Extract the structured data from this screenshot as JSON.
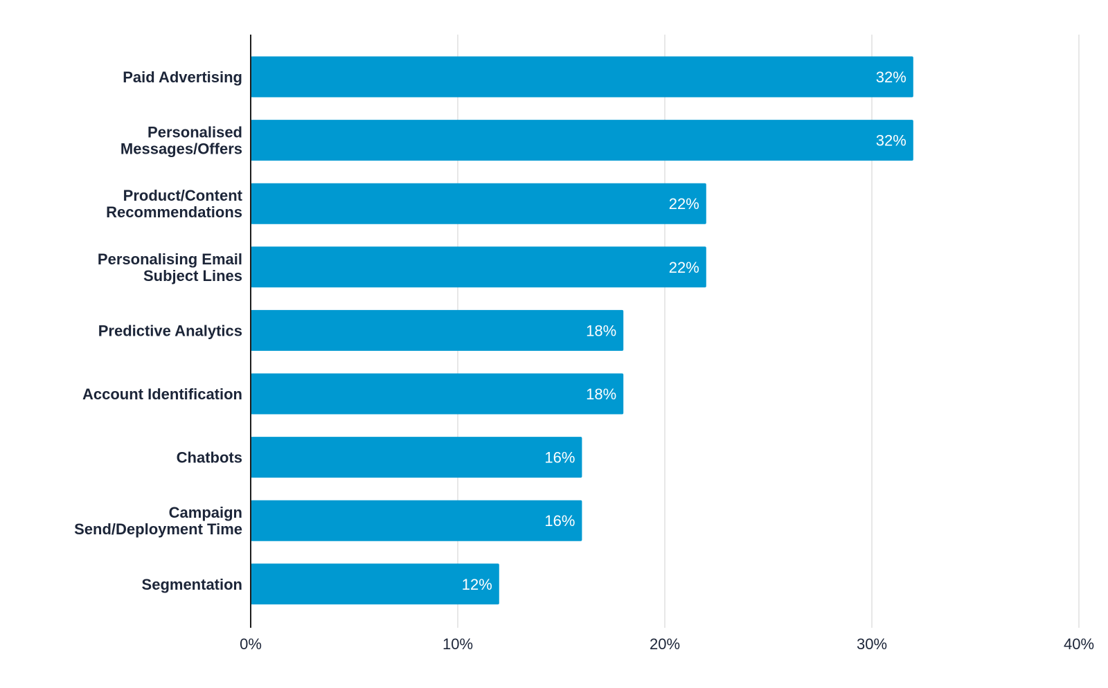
{
  "chart_data": {
    "type": "bar",
    "orientation": "horizontal",
    "categories": [
      [
        "Paid Advertising"
      ],
      [
        "Personalised",
        "Messages/Offers"
      ],
      [
        "Product/Content",
        "Recommendations"
      ],
      [
        "Personalising Email",
        "Subject Lines"
      ],
      [
        "Predictive Analytics"
      ],
      [
        "Account Identification"
      ],
      [
        "Chatbots"
      ],
      [
        "Campaign",
        "Send/Deployment Time"
      ],
      [
        "Segmentation"
      ]
    ],
    "values": [
      32,
      32,
      22,
      22,
      18,
      18,
      16,
      16,
      12
    ],
    "value_labels": [
      "32%",
      "32%",
      "22%",
      "22%",
      "18%",
      "18%",
      "16%",
      "16%",
      "12%"
    ],
    "xlim": [
      0,
      40
    ],
    "x_ticks": [
      0,
      10,
      20,
      30,
      40
    ],
    "x_tick_labels": [
      "0%",
      "10%",
      "20%",
      "30%",
      "40%"
    ],
    "bar_color": "#0099d1",
    "grid": true,
    "title": "",
    "xlabel": "",
    "ylabel": ""
  }
}
